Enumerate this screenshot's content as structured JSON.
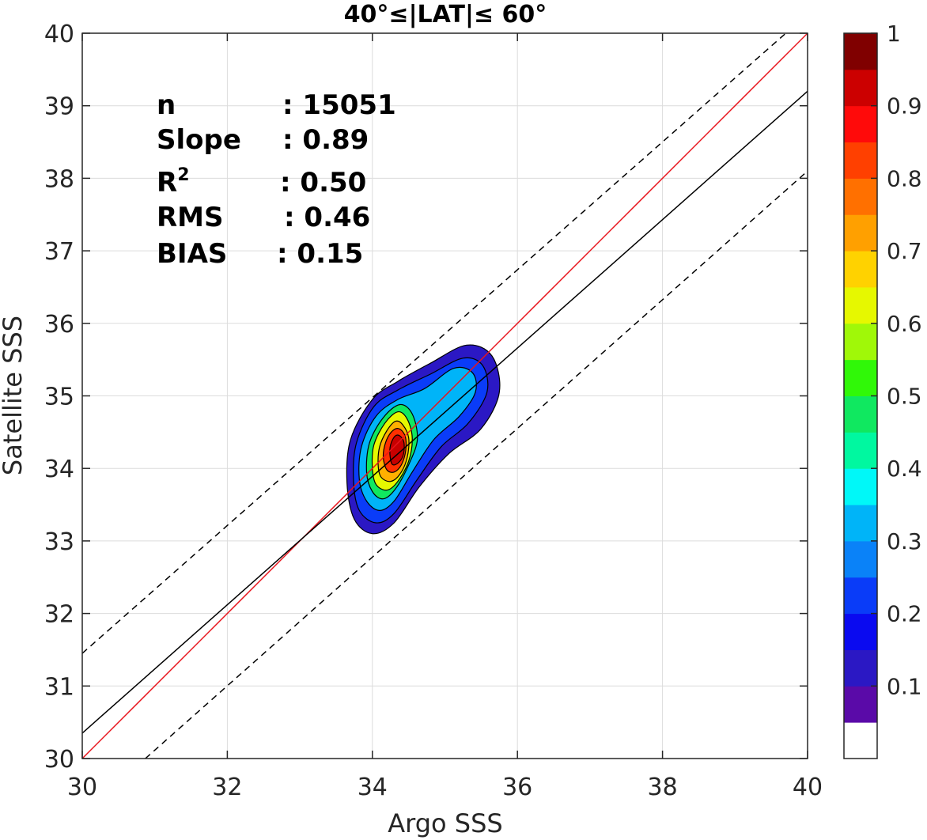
{
  "chart_data": {
    "type": "scatter",
    "title": "40°≤|LAT|≤ 60°",
    "xlabel": "Argo SSS",
    "ylabel": "Satellite SSS",
    "xlim": [
      30,
      40
    ],
    "ylim": [
      30,
      40
    ],
    "xticks": [
      "30",
      "32",
      "34",
      "36",
      "38",
      "40"
    ],
    "yticks": [
      "30",
      "31",
      "32",
      "33",
      "34",
      "35",
      "36",
      "37",
      "38",
      "39",
      "40"
    ],
    "grid": true,
    "stats": [
      {
        "label": "n",
        "value": ": 15051"
      },
      {
        "label": "Slope",
        "value": ": 0.89"
      },
      {
        "label": "R",
        "sup": "2",
        "value": ": 0.50"
      },
      {
        "label": "RMS",
        "value": ": 0.46"
      },
      {
        "label": "BIAS",
        "value": ": 0.15"
      }
    ],
    "lines": [
      {
        "role": "one-to-one",
        "color": "#e8141c",
        "style": "solid",
        "points": [
          [
            30,
            30
          ],
          [
            40,
            40
          ]
        ]
      },
      {
        "role": "regression",
        "color": "#000000",
        "style": "solid",
        "points": [
          [
            30,
            30.35
          ],
          [
            40,
            39.2
          ]
        ]
      },
      {
        "role": "upper-bound",
        "color": "#000000",
        "style": "dashed",
        "points": [
          [
            30,
            31.45
          ],
          [
            39.7,
            40
          ]
        ]
      },
      {
        "role": "lower-bound",
        "color": "#000000",
        "style": "dashed",
        "points": [
          [
            30.87,
            30
          ],
          [
            40,
            38.1
          ]
        ]
      }
    ],
    "density": {
      "center": [
        34.35,
        34.25
      ],
      "levels": [
        0.05,
        0.15,
        0.3,
        0.45,
        0.6,
        0.7,
        0.8,
        0.9
      ],
      "level_colors": [
        "#2b18c4",
        "#0a3cf8",
        "#00b4f8",
        "#10e860",
        "#e6f800",
        "#ffb000",
        "#ff3000",
        "#c80000"
      ],
      "contours": [
        {
          "level": 0.05,
          "points": [
            [
              33.75,
              33.3
            ],
            [
              34.0,
              33.1
            ],
            [
              34.3,
              33.25
            ],
            [
              34.65,
              33.75
            ],
            [
              35.05,
              34.2
            ],
            [
              35.5,
              34.55
            ],
            [
              35.75,
              35.05
            ],
            [
              35.65,
              35.55
            ],
            [
              35.3,
              35.7
            ],
            [
              34.8,
              35.45
            ],
            [
              34.35,
              35.2
            ],
            [
              34.0,
              34.95
            ],
            [
              33.7,
              34.4
            ],
            [
              33.65,
              33.8
            ]
          ]
        },
        {
          "level": 0.15,
          "points": [
            [
              33.82,
              33.42
            ],
            [
              34.05,
              33.25
            ],
            [
              34.3,
              33.38
            ],
            [
              34.62,
              33.85
            ],
            [
              34.95,
              34.3
            ],
            [
              35.32,
              34.62
            ],
            [
              35.58,
              35.05
            ],
            [
              35.52,
              35.42
            ],
            [
              35.25,
              35.52
            ],
            [
              34.8,
              35.3
            ],
            [
              34.35,
              35.08
            ],
            [
              34.02,
              34.85
            ],
            [
              33.78,
              34.35
            ],
            [
              33.74,
              33.82
            ]
          ]
        },
        {
          "level": 0.3,
          "points": [
            [
              33.92,
              33.55
            ],
            [
              34.1,
              33.42
            ],
            [
              34.3,
              33.55
            ],
            [
              34.55,
              33.95
            ],
            [
              34.85,
              34.4
            ],
            [
              35.2,
              34.72
            ],
            [
              35.42,
              35.05
            ],
            [
              35.38,
              35.32
            ],
            [
              35.12,
              35.38
            ],
            [
              34.72,
              35.1
            ],
            [
              34.35,
              34.95
            ],
            [
              34.05,
              34.72
            ],
            [
              33.85,
              34.3
            ],
            [
              33.82,
              33.85
            ]
          ]
        },
        {
          "level": 0.45,
          "points": [
            [
              34.0,
              33.68
            ],
            [
              34.15,
              33.58
            ],
            [
              34.32,
              33.72
            ],
            [
              34.5,
              34.05
            ],
            [
              34.62,
              34.4
            ],
            [
              34.55,
              34.75
            ],
            [
              34.38,
              34.88
            ],
            [
              34.15,
              34.7
            ],
            [
              33.96,
              34.35
            ],
            [
              33.92,
              33.95
            ]
          ]
        },
        {
          "level": 0.6,
          "points": [
            [
              34.05,
              33.78
            ],
            [
              34.2,
              33.7
            ],
            [
              34.35,
              33.82
            ],
            [
              34.5,
              34.1
            ],
            [
              34.55,
              34.42
            ],
            [
              34.48,
              34.68
            ],
            [
              34.35,
              34.78
            ],
            [
              34.17,
              34.62
            ],
            [
              34.02,
              34.32
            ],
            [
              34.0,
              34.0
            ]
          ]
        },
        {
          "level": 0.7,
          "points": [
            [
              34.12,
              33.88
            ],
            [
              34.25,
              33.82
            ],
            [
              34.38,
              33.92
            ],
            [
              34.48,
              34.15
            ],
            [
              34.5,
              34.42
            ],
            [
              34.42,
              34.6
            ],
            [
              34.32,
              34.65
            ],
            [
              34.2,
              34.52
            ],
            [
              34.1,
              34.3
            ],
            [
              34.08,
              34.05
            ]
          ]
        },
        {
          "level": 0.8,
          "points": [
            [
              34.2,
              33.98
            ],
            [
              34.3,
              33.95
            ],
            [
              34.4,
              34.05
            ],
            [
              34.46,
              34.25
            ],
            [
              34.45,
              34.45
            ],
            [
              34.36,
              34.55
            ],
            [
              34.26,
              34.5
            ],
            [
              34.18,
              34.35
            ],
            [
              34.15,
              34.15
            ]
          ]
        },
        {
          "level": 0.9,
          "points": [
            [
              34.27,
              34.06
            ],
            [
              34.36,
              34.08
            ],
            [
              34.43,
              34.2
            ],
            [
              34.43,
              34.38
            ],
            [
              34.35,
              34.46
            ],
            [
              34.28,
              34.4
            ],
            [
              34.24,
              34.25
            ]
          ]
        }
      ]
    },
    "colorbar": {
      "range": [
        0,
        1
      ],
      "ticks": [
        "0.1",
        "0.2",
        "0.3",
        "0.4",
        "0.5",
        "0.6",
        "0.7",
        "0.8",
        "0.9",
        "1"
      ],
      "tick_values": [
        0.1,
        0.2,
        0.3,
        0.4,
        0.5,
        0.6,
        0.7,
        0.8,
        0.9,
        1.0
      ],
      "bands": [
        {
          "from": 0.0,
          "to": 0.05,
          "color": "#ffffff"
        },
        {
          "from": 0.05,
          "to": 0.1,
          "color": "#5a0aa8"
        },
        {
          "from": 0.1,
          "to": 0.15,
          "color": "#2b18c4"
        },
        {
          "from": 0.15,
          "to": 0.2,
          "color": "#0a0af0"
        },
        {
          "from": 0.2,
          "to": 0.25,
          "color": "#0a3cf8"
        },
        {
          "from": 0.25,
          "to": 0.3,
          "color": "#0a82f8"
        },
        {
          "from": 0.3,
          "to": 0.35,
          "color": "#00b4f8"
        },
        {
          "from": 0.35,
          "to": 0.4,
          "color": "#00f8f8"
        },
        {
          "from": 0.4,
          "to": 0.45,
          "color": "#00f8a0"
        },
        {
          "from": 0.45,
          "to": 0.5,
          "color": "#10e860"
        },
        {
          "from": 0.5,
          "to": 0.55,
          "color": "#30f808"
        },
        {
          "from": 0.55,
          "to": 0.6,
          "color": "#a0f808"
        },
        {
          "from": 0.6,
          "to": 0.65,
          "color": "#e6f800"
        },
        {
          "from": 0.65,
          "to": 0.7,
          "color": "#ffd200"
        },
        {
          "from": 0.7,
          "to": 0.75,
          "color": "#ffa000"
        },
        {
          "from": 0.75,
          "to": 0.8,
          "color": "#ff7000"
        },
        {
          "from": 0.8,
          "to": 0.85,
          "color": "#ff4000"
        },
        {
          "from": 0.85,
          "to": 0.9,
          "color": "#ff0a0a"
        },
        {
          "from": 0.9,
          "to": 0.95,
          "color": "#cc0000"
        },
        {
          "from": 0.95,
          "to": 1.0,
          "color": "#800000"
        }
      ]
    }
  }
}
